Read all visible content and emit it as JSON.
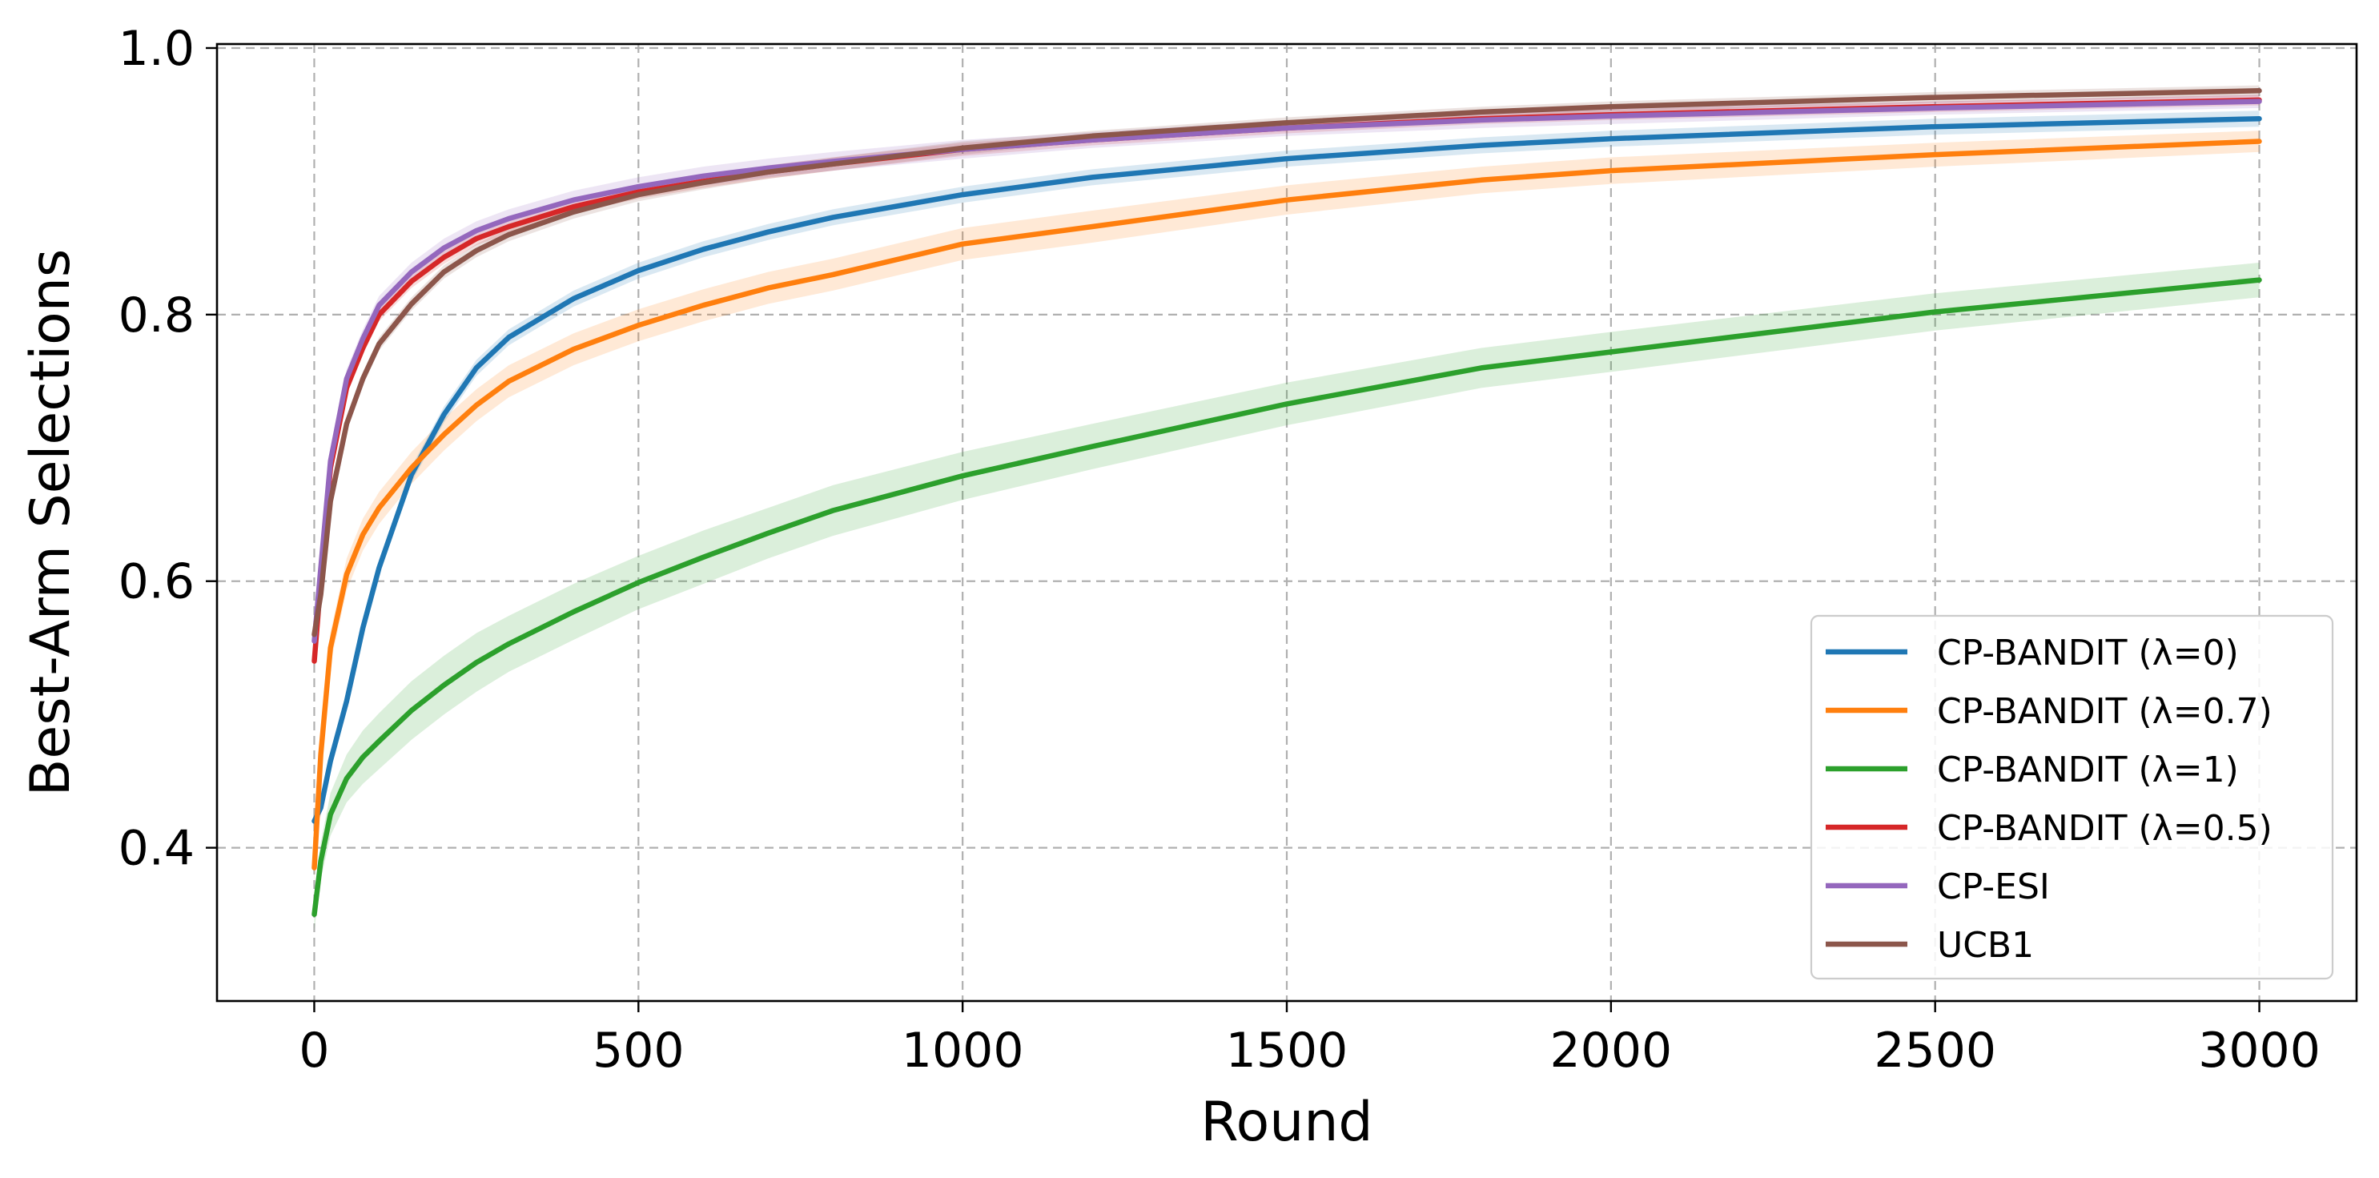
{
  "chart_data": {
    "type": "line",
    "title": "",
    "xlabel": "Round",
    "ylabel": "Best-Arm Selections",
    "xlim": [
      -150,
      3150
    ],
    "ylim": [
      0.285,
      1.003
    ],
    "x_ticks": [
      0,
      500,
      1000,
      1500,
      2000,
      2500,
      3000
    ],
    "x_tick_labels": [
      "0",
      "500",
      "1000",
      "1500",
      "2000",
      "2500",
      "3000"
    ],
    "y_ticks": [
      0.4,
      0.6,
      0.8,
      1.0
    ],
    "y_tick_labels": [
      "0.4",
      "0.6",
      "0.8",
      "1.0"
    ],
    "grid": true,
    "legend_position": "lower-right",
    "x": [
      0,
      10,
      25,
      50,
      75,
      100,
      150,
      200,
      250,
      300,
      400,
      500,
      600,
      700,
      800,
      1000,
      1200,
      1500,
      1800,
      2000,
      2500,
      3000
    ],
    "series": [
      {
        "name": "CP-BANDIT (λ=0)",
        "color": "#1f77b4",
        "values": [
          0.42,
          0.43,
          0.465,
          0.51,
          0.565,
          0.61,
          0.68,
          0.725,
          0.76,
          0.783,
          0.812,
          0.833,
          0.849,
          0.862,
          0.873,
          0.89,
          0.903,
          0.917,
          0.927,
          0.932,
          0.941,
          0.947
        ],
        "band": [
          0.006,
          0.006,
          0.006,
          0.006,
          0.006,
          0.006,
          0.006,
          0.006,
          0.006,
          0.006,
          0.006,
          0.006,
          0.006,
          0.006,
          0.006,
          0.006,
          0.006,
          0.006,
          0.006,
          0.006,
          0.006,
          0.006
        ]
      },
      {
        "name": "CP-BANDIT (λ=0.7)",
        "color": "#ff7f0e",
        "values": [
          0.385,
          0.47,
          0.55,
          0.605,
          0.635,
          0.655,
          0.685,
          0.71,
          0.732,
          0.75,
          0.774,
          0.792,
          0.807,
          0.82,
          0.83,
          0.853,
          0.866,
          0.886,
          0.901,
          0.908,
          0.92,
          0.93
        ],
        "band": [
          0.012,
          0.012,
          0.012,
          0.012,
          0.012,
          0.012,
          0.012,
          0.012,
          0.012,
          0.012,
          0.012,
          0.012,
          0.012,
          0.012,
          0.012,
          0.012,
          0.012,
          0.011,
          0.01,
          0.01,
          0.009,
          0.008
        ]
      },
      {
        "name": "CP-BANDIT (λ=1)",
        "color": "#2ca02c",
        "values": [
          0.35,
          0.39,
          0.425,
          0.452,
          0.468,
          0.48,
          0.503,
          0.522,
          0.539,
          0.553,
          0.577,
          0.599,
          0.618,
          0.636,
          0.653,
          0.679,
          0.701,
          0.733,
          0.76,
          0.772,
          0.802,
          0.826
        ],
        "band": [
          0.012,
          0.014,
          0.016,
          0.018,
          0.02,
          0.021,
          0.022,
          0.022,
          0.022,
          0.021,
          0.021,
          0.02,
          0.02,
          0.019,
          0.019,
          0.018,
          0.017,
          0.016,
          0.015,
          0.015,
          0.014,
          0.013
        ]
      },
      {
        "name": "CP-BANDIT (λ=0.5)",
        "color": "#d62728",
        "values": [
          0.54,
          0.6,
          0.685,
          0.745,
          0.775,
          0.8,
          0.825,
          0.843,
          0.857,
          0.866,
          0.881,
          0.892,
          0.9,
          0.907,
          0.913,
          0.924,
          0.931,
          0.94,
          0.947,
          0.95,
          0.956,
          0.961
        ],
        "band": [
          0.005,
          0.005,
          0.005,
          0.005,
          0.005,
          0.005,
          0.005,
          0.005,
          0.005,
          0.005,
          0.005,
          0.005,
          0.005,
          0.005,
          0.005,
          0.005,
          0.004,
          0.004,
          0.004,
          0.004,
          0.004,
          0.004
        ]
      },
      {
        "name": "CP-ESI",
        "color": "#9467bd",
        "values": [
          0.555,
          0.61,
          0.69,
          0.752,
          0.782,
          0.807,
          0.832,
          0.85,
          0.863,
          0.872,
          0.886,
          0.896,
          0.904,
          0.91,
          0.915,
          0.924,
          0.931,
          0.94,
          0.946,
          0.949,
          0.955,
          0.96
        ],
        "band": [
          0.007,
          0.007,
          0.007,
          0.007,
          0.007,
          0.007,
          0.007,
          0.007,
          0.007,
          0.007,
          0.007,
          0.007,
          0.007,
          0.007,
          0.007,
          0.007,
          0.006,
          0.006,
          0.006,
          0.006,
          0.005,
          0.005
        ]
      },
      {
        "name": "UCB1",
        "color": "#8c564b",
        "values": [
          0.56,
          0.59,
          0.66,
          0.718,
          0.752,
          0.778,
          0.808,
          0.832,
          0.848,
          0.86,
          0.877,
          0.89,
          0.899,
          0.907,
          0.913,
          0.925,
          0.934,
          0.944,
          0.952,
          0.956,
          0.963,
          0.968
        ],
        "band": [
          0.005,
          0.005,
          0.005,
          0.005,
          0.005,
          0.005,
          0.005,
          0.005,
          0.005,
          0.005,
          0.005,
          0.005,
          0.005,
          0.005,
          0.005,
          0.005,
          0.004,
          0.004,
          0.004,
          0.004,
          0.004,
          0.004
        ]
      }
    ]
  }
}
